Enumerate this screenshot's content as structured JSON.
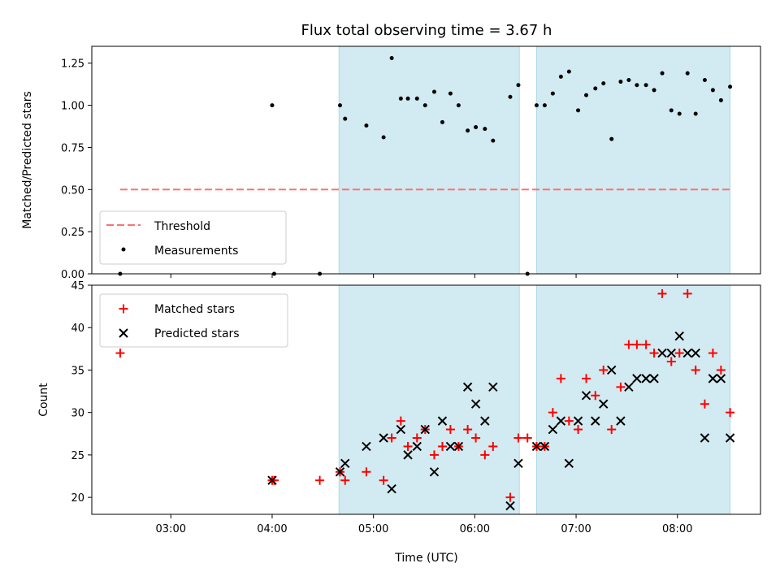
{
  "colors": {
    "span": "#add8e6",
    "threshold": "#ff7070",
    "measurement": "#000000",
    "matched": "#ff0000",
    "predicted": "#000000"
  },
  "chart_data": [
    {
      "type": "scatter",
      "title": "Flux total observing time = 3.67 h",
      "xlabel": "",
      "ylabel": "Matched/Predicted stars",
      "xlim": [
        2.22,
        8.82
      ],
      "ylim": [
        0,
        1.35
      ],
      "yticks": [
        0.0,
        0.25,
        0.5,
        0.75,
        1.0,
        1.25
      ],
      "ytick_labels": [
        "0.00",
        "0.25",
        "0.50",
        "0.75",
        "1.00",
        "1.25"
      ],
      "shaded_spans": [
        [
          4.66,
          6.44
        ],
        [
          6.61,
          8.52
        ]
      ],
      "legend_position": "lower-left",
      "threshold": {
        "name": "Threshold",
        "value": 0.5,
        "x_range": [
          2.5,
          8.52
        ]
      },
      "series": [
        {
          "name": "Measurements",
          "marker": "dot",
          "points": [
            [
              2.5,
              0.0
            ],
            [
              4.0,
              1.0
            ],
            [
              4.02,
              0.0
            ],
            [
              4.47,
              0.0
            ],
            [
              4.67,
              1.0
            ],
            [
              4.72,
              0.92
            ],
            [
              4.93,
              0.88
            ],
            [
              5.1,
              0.81
            ],
            [
              5.18,
              1.28
            ],
            [
              5.27,
              1.04
            ],
            [
              5.34,
              1.04
            ],
            [
              5.43,
              1.04
            ],
            [
              5.51,
              1.0
            ],
            [
              5.6,
              1.08
            ],
            [
              5.68,
              0.9
            ],
            [
              5.76,
              1.07
            ],
            [
              5.84,
              1.0
            ],
            [
              5.93,
              0.85
            ],
            [
              6.01,
              0.87
            ],
            [
              6.1,
              0.86
            ],
            [
              6.18,
              0.79
            ],
            [
              6.35,
              1.05
            ],
            [
              6.43,
              1.12
            ],
            [
              6.52,
              0.0
            ],
            [
              6.61,
              1.0
            ],
            [
              6.69,
              1.0
            ],
            [
              6.77,
              1.07
            ],
            [
              6.85,
              1.17
            ],
            [
              6.93,
              1.2
            ],
            [
              7.02,
              0.97
            ],
            [
              7.1,
              1.06
            ],
            [
              7.19,
              1.1
            ],
            [
              7.27,
              1.13
            ],
            [
              7.35,
              0.8
            ],
            [
              7.44,
              1.14
            ],
            [
              7.52,
              1.15
            ],
            [
              7.6,
              1.12
            ],
            [
              7.69,
              1.12
            ],
            [
              7.77,
              1.09
            ],
            [
              7.85,
              1.19
            ],
            [
              7.94,
              0.97
            ],
            [
              8.02,
              0.95
            ],
            [
              8.1,
              1.19
            ],
            [
              8.18,
              0.95
            ],
            [
              8.27,
              1.15
            ],
            [
              8.35,
              1.09
            ],
            [
              8.43,
              1.03
            ],
            [
              8.52,
              1.11
            ]
          ]
        }
      ]
    },
    {
      "type": "scatter",
      "title": "",
      "xlabel": "Time (UTC)",
      "ylabel": "Count",
      "xlim": [
        2.22,
        8.82
      ],
      "ylim": [
        18,
        45
      ],
      "xticks": [
        3,
        4,
        5,
        6,
        7,
        8
      ],
      "xtick_labels": [
        "03:00",
        "04:00",
        "05:00",
        "06:00",
        "07:00",
        "08:00"
      ],
      "yticks": [
        20,
        25,
        30,
        35,
        40,
        45
      ],
      "ytick_labels": [
        "20",
        "25",
        "30",
        "35",
        "40",
        "45"
      ],
      "shaded_spans": [
        [
          4.66,
          6.44
        ],
        [
          6.61,
          8.52
        ]
      ],
      "legend_position": "upper-left",
      "series": [
        {
          "name": "Matched stars",
          "marker": "plus",
          "points": [
            [
              2.5,
              37
            ],
            [
              4.0,
              22
            ],
            [
              4.02,
              22
            ],
            [
              4.47,
              22
            ],
            [
              4.67,
              23
            ],
            [
              4.72,
              22
            ],
            [
              4.93,
              23
            ],
            [
              5.1,
              22
            ],
            [
              5.18,
              27
            ],
            [
              5.27,
              29
            ],
            [
              5.34,
              26
            ],
            [
              5.43,
              27
            ],
            [
              5.51,
              28
            ],
            [
              5.6,
              25
            ],
            [
              5.68,
              26
            ],
            [
              5.76,
              28
            ],
            [
              5.84,
              26
            ],
            [
              5.93,
              28
            ],
            [
              6.01,
              27
            ],
            [
              6.1,
              25
            ],
            [
              6.18,
              26
            ],
            [
              6.35,
              20
            ],
            [
              6.43,
              27
            ],
            [
              6.52,
              27
            ],
            [
              6.61,
              26
            ],
            [
              6.69,
              26
            ],
            [
              6.77,
              30
            ],
            [
              6.85,
              34
            ],
            [
              6.93,
              29
            ],
            [
              7.02,
              28
            ],
            [
              7.1,
              34
            ],
            [
              7.19,
              32
            ],
            [
              7.27,
              35
            ],
            [
              7.35,
              28
            ],
            [
              7.44,
              33
            ],
            [
              7.52,
              38
            ],
            [
              7.6,
              38
            ],
            [
              7.69,
              38
            ],
            [
              7.77,
              37
            ],
            [
              7.85,
              44
            ],
            [
              7.94,
              36
            ],
            [
              8.02,
              37
            ],
            [
              8.1,
              44
            ],
            [
              8.18,
              35
            ],
            [
              8.27,
              31
            ],
            [
              8.35,
              37
            ],
            [
              8.43,
              35
            ],
            [
              8.52,
              30
            ]
          ]
        },
        {
          "name": "Predicted stars",
          "marker": "x",
          "points": [
            [
              4.0,
              22
            ],
            [
              4.67,
              23
            ],
            [
              4.72,
              24
            ],
            [
              4.93,
              26
            ],
            [
              5.1,
              27
            ],
            [
              5.18,
              21
            ],
            [
              5.27,
              28
            ],
            [
              5.34,
              25
            ],
            [
              5.43,
              26
            ],
            [
              5.51,
              28
            ],
            [
              5.6,
              23
            ],
            [
              5.68,
              29
            ],
            [
              5.76,
              26
            ],
            [
              5.84,
              26
            ],
            [
              5.93,
              33
            ],
            [
              6.01,
              31
            ],
            [
              6.1,
              29
            ],
            [
              6.18,
              33
            ],
            [
              6.35,
              19
            ],
            [
              6.43,
              24
            ],
            [
              6.61,
              26
            ],
            [
              6.69,
              26
            ],
            [
              6.77,
              28
            ],
            [
              6.85,
              29
            ],
            [
              6.93,
              24
            ],
            [
              7.02,
              29
            ],
            [
              7.1,
              32
            ],
            [
              7.19,
              29
            ],
            [
              7.27,
              31
            ],
            [
              7.35,
              35
            ],
            [
              7.44,
              29
            ],
            [
              7.52,
              33
            ],
            [
              7.6,
              34
            ],
            [
              7.69,
              34
            ],
            [
              7.77,
              34
            ],
            [
              7.85,
              37
            ],
            [
              7.94,
              37
            ],
            [
              8.02,
              39
            ],
            [
              8.1,
              37
            ],
            [
              8.18,
              37
            ],
            [
              8.27,
              27
            ],
            [
              8.35,
              34
            ],
            [
              8.43,
              34
            ],
            [
              8.52,
              27
            ]
          ]
        }
      ]
    }
  ]
}
